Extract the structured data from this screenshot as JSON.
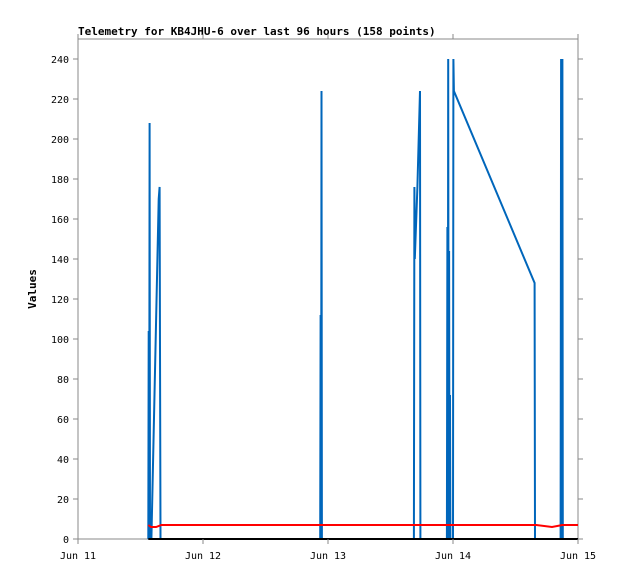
{
  "chart_data": {
    "type": "line",
    "title": "Telemetry for KB4JHU-6 over last 96 hours (158 points)",
    "xlabel": "",
    "ylabel": "Values",
    "xlim": [
      "2024-06-11T00:00",
      "2024-06-15T00:00"
    ],
    "ylim": [
      0,
      250
    ],
    "x_ticks": [
      {
        "label": "Jun 11",
        "value": "2024-06-11T00:00"
      },
      {
        "label": "Jun 12",
        "value": "2024-06-12T00:00"
      },
      {
        "label": "Jun 13",
        "value": "2024-06-13T00:00"
      },
      {
        "label": "Jun 14",
        "value": "2024-06-14T00:00"
      },
      {
        "label": "Jun 15",
        "value": "2024-06-15T00:00"
      }
    ],
    "y_ticks": [
      0,
      20,
      40,
      60,
      80,
      100,
      120,
      140,
      160,
      180,
      200,
      220,
      240
    ],
    "grid": false,
    "series": [
      {
        "color": "#0066bb",
        "points": [
          [
            "2024-06-11T13:30",
            0
          ],
          [
            "2024-06-11T13:35",
            104
          ],
          [
            "2024-06-11T13:40",
            0
          ],
          [
            "2024-06-11T13:45",
            208
          ],
          [
            "2024-06-11T13:50",
            0
          ],
          [
            "2024-06-11T14:05",
            0
          ],
          [
            "2024-06-11T15:30",
            170
          ],
          [
            "2024-06-11T15:40",
            176
          ],
          [
            "2024-06-11T15:45",
            95
          ],
          [
            "2024-06-11T15:50",
            0
          ],
          [
            "2024-06-12T22:30",
            0
          ],
          [
            "2024-06-12T22:35",
            112
          ],
          [
            "2024-06-12T22:40",
            0
          ],
          [
            "2024-06-12T22:45",
            224
          ],
          [
            "2024-06-12T22:50",
            0
          ],
          [
            "2024-06-13T16:30",
            0
          ],
          [
            "2024-06-13T16:35",
            176
          ],
          [
            "2024-06-13T16:40",
            140
          ],
          [
            "2024-06-13T17:10",
            176
          ],
          [
            "2024-06-13T17:40",
            224
          ],
          [
            "2024-06-13T17:45",
            0
          ],
          [
            "2024-06-13T22:50",
            0
          ],
          [
            "2024-06-13T22:55",
            156
          ],
          [
            "2024-06-13T23:00",
            0
          ],
          [
            "2024-06-13T23:05",
            240
          ],
          [
            "2024-06-13T23:10",
            0
          ],
          [
            "2024-06-13T23:15",
            144
          ],
          [
            "2024-06-13T23:20",
            0
          ],
          [
            "2024-06-13T23:25",
            72
          ],
          [
            "2024-06-13T23:30",
            0
          ],
          [
            "2024-06-14T00:00",
            0
          ],
          [
            "2024-06-14T00:05",
            240
          ],
          [
            "2024-06-14T00:10",
            224
          ],
          [
            "2024-06-14T15:40",
            128
          ],
          [
            "2024-06-14T15:45",
            0
          ],
          [
            "2024-06-14T20:40",
            0
          ],
          [
            "2024-06-14T20:45",
            240
          ],
          [
            "2024-06-14T20:50",
            0
          ],
          [
            "2024-06-14T21:00",
            240
          ],
          [
            "2024-06-14T21:05",
            0
          ]
        ]
      },
      {
        "color": "#ff0000",
        "points": [
          [
            "2024-06-11T13:30",
            7
          ],
          [
            "2024-06-11T14:00",
            6
          ],
          [
            "2024-06-11T15:00",
            6
          ],
          [
            "2024-06-11T16:00",
            7
          ],
          [
            "2024-06-12T12:00",
            7
          ],
          [
            "2024-06-13T00:00",
            7
          ],
          [
            "2024-06-13T12:00",
            7
          ],
          [
            "2024-06-14T00:00",
            7
          ],
          [
            "2024-06-14T16:00",
            7
          ],
          [
            "2024-06-14T19:00",
            6
          ],
          [
            "2024-06-14T21:00",
            7
          ],
          [
            "2024-06-15T00:00",
            7
          ]
        ]
      },
      {
        "color": "#000000",
        "points": [
          [
            "2024-06-11T13:30",
            0
          ],
          [
            "2024-06-15T00:00",
            0
          ]
        ]
      }
    ]
  }
}
